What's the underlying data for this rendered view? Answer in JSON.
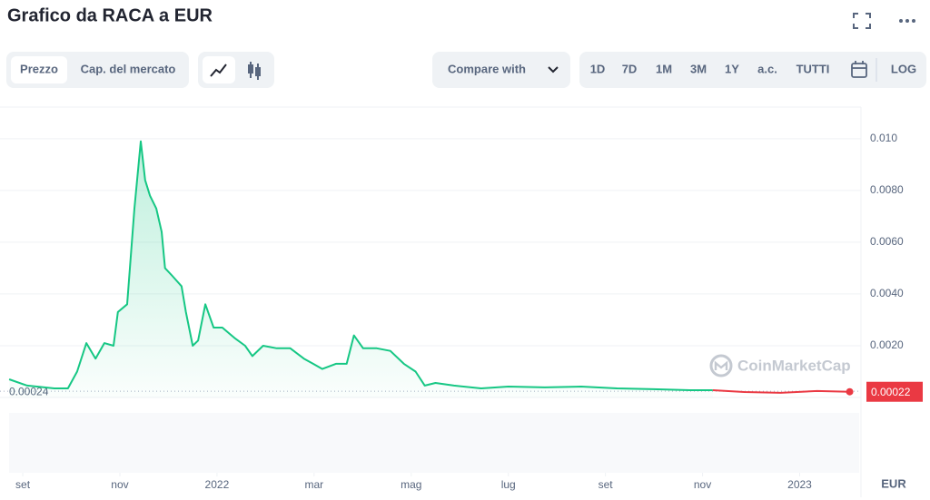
{
  "title": "Grafico da RACA a EUR",
  "tabs": [
    "Prezzo",
    "Cap. del mercato"
  ],
  "compare": "Compare with",
  "ranges": [
    "1D",
    "7D",
    "1M",
    "3M",
    "1Y",
    "a.c.",
    "TUTTI"
  ],
  "log": "LOG",
  "watermark": "CoinMarketCap",
  "currency": "EUR",
  "chart_data": {
    "type": "line",
    "x": [
      -0.28,
      0.09,
      0.65,
      0.93,
      1.12,
      1.31,
      1.5,
      1.68,
      1.87,
      1.96,
      2.15,
      2.3,
      2.43,
      2.52,
      2.62,
      2.75,
      2.86,
      2.93,
      3.08,
      3.27,
      3.36,
      3.5,
      3.61,
      3.76,
      3.93,
      4.11,
      4.36,
      4.58,
      4.73,
      4.95,
      5.23,
      5.51,
      5.79,
      5.98,
      6.17,
      6.45,
      6.67,
      6.82,
      7.01,
      7.29,
      7.57,
      7.85,
      8.09,
      8.28,
      8.5,
      8.88,
      9.44,
      10,
      10.75,
      11.5,
      12.24,
      12.99,
      13.74,
      14.21,
      14.86,
      15.61,
      16.36,
      17.03
    ],
    "series": [
      {
        "color": "#16c784",
        "values": [
          0.0007,
          0.00046,
          0.00035,
          0.00035,
          0.001,
          0.0021,
          0.0015,
          0.0021,
          0.002,
          0.0033,
          0.0036,
          0.0073,
          0.0099,
          0.0084,
          0.0078,
          0.0073,
          0.0064,
          0.005,
          0.0047,
          0.0043,
          0.0033,
          0.002,
          0.0022,
          0.0036,
          0.0027,
          0.0027,
          0.0023,
          0.002,
          0.0016,
          0.002,
          0.0019,
          0.0019,
          0.0015,
          0.0013,
          0.0011,
          0.0013,
          0.0013,
          0.0024,
          0.0019,
          0.0019,
          0.0018,
          0.0013,
          0.001,
          0.00046,
          0.00056,
          0.00046,
          0.00035,
          0.00042,
          0.00039,
          0.00042,
          0.00035,
          0.00032,
          0.00028,
          0.00028,
          null,
          null,
          null,
          null
        ]
      },
      {
        "color": "#ea3943",
        "values": [
          null,
          null,
          null,
          null,
          null,
          null,
          null,
          null,
          null,
          null,
          null,
          null,
          null,
          null,
          null,
          null,
          null,
          null,
          null,
          null,
          null,
          null,
          null,
          null,
          null,
          null,
          null,
          null,
          null,
          null,
          null,
          null,
          null,
          null,
          null,
          null,
          null,
          null,
          null,
          null,
          null,
          null,
          null,
          null,
          null,
          null,
          null,
          null,
          null,
          null,
          null,
          null,
          null,
          0.00028,
          0.00021,
          0.00018,
          0.00025,
          0.00022
        ]
      }
    ],
    "xlim": [
      -0.3,
      17.3
    ],
    "xticks": [
      {
        "value": 0,
        "label": "set"
      },
      {
        "value": 2,
        "label": "nov"
      },
      {
        "value": 4,
        "label": "2022"
      },
      {
        "value": 6,
        "label": "mar"
      },
      {
        "value": 8,
        "label": "mag"
      },
      {
        "value": 10,
        "label": "lug"
      },
      {
        "value": 12,
        "label": "set"
      },
      {
        "value": 14,
        "label": "nov"
      },
      {
        "value": 16,
        "label": "2023"
      }
    ],
    "ylim": [
      0,
      0.0108
    ],
    "yticks": [
      {
        "value": 0.002,
        "label": "0.0020"
      },
      {
        "value": 0.004,
        "label": "0.0040"
      },
      {
        "value": 0.006,
        "label": "0.0060"
      },
      {
        "value": 0.008,
        "label": "0.0080"
      },
      {
        "value": 0.01,
        "label": "0.010"
      }
    ],
    "grid": true,
    "start_price": 0.00024,
    "last_price": 0.00022,
    "last_price_color": "#ea3943"
  }
}
